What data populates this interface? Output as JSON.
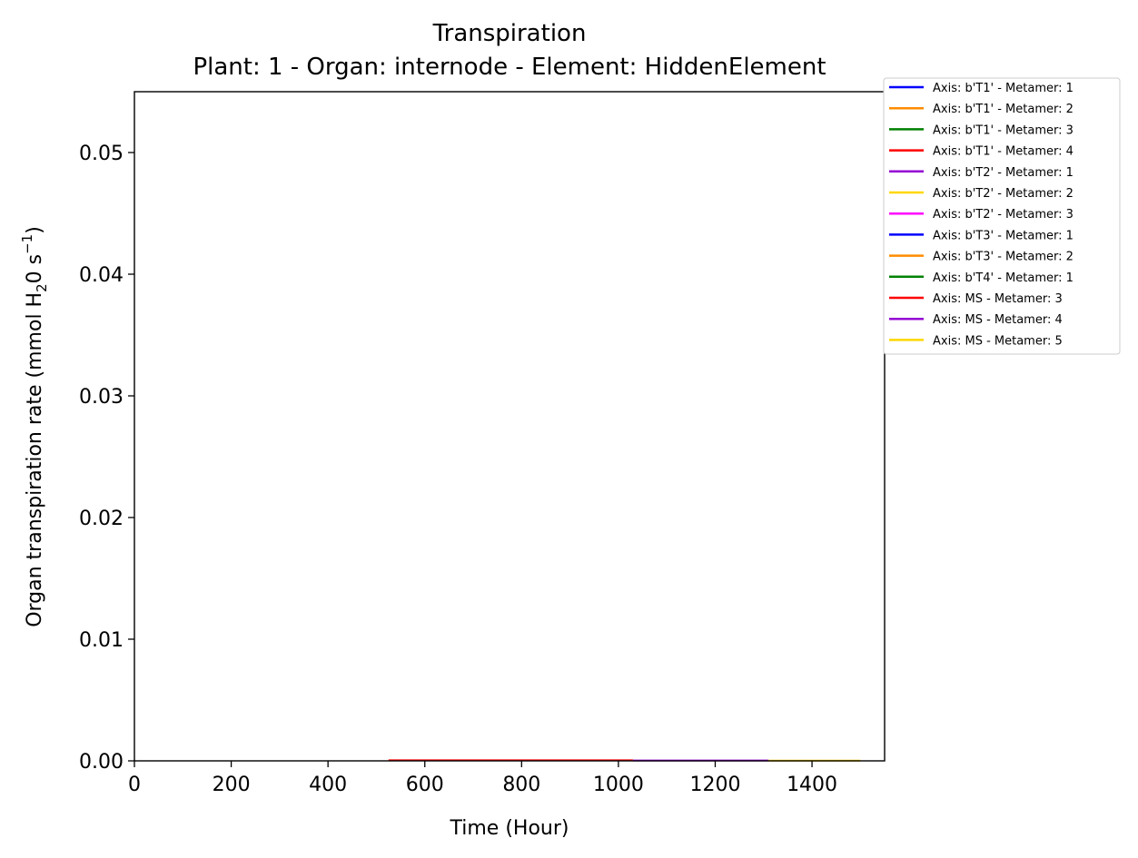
{
  "chart_data": {
    "type": "line",
    "title": "Transpiration",
    "subtitle": "Plant: 1 - Organ: internode - Element: HiddenElement",
    "xlabel": "Time (Hour)",
    "ylabel_parts": [
      "Organ transpiration rate (mmol H",
      "2",
      "0 s",
      "−1",
      ")"
    ],
    "xlim": [
      0,
      1550
    ],
    "ylim": [
      0,
      0.055
    ],
    "xticks": [
      0,
      200,
      400,
      600,
      800,
      1000,
      1200,
      1400
    ],
    "xtick_labels": [
      "0",
      "200",
      "400",
      "600",
      "800",
      "1000",
      "1200",
      "1400"
    ],
    "yticks": [
      0,
      0.01,
      0.02,
      0.03,
      0.04,
      0.05
    ],
    "ytick_labels": [
      "0.00",
      "0.01",
      "0.02",
      "0.03",
      "0.04",
      "0.05"
    ],
    "grid": false,
    "legend_position": "outside-top-right",
    "series": [
      {
        "name": "Axis: b'T1' - Metamer: 1",
        "color": "#0000ff",
        "x": [],
        "y": []
      },
      {
        "name": "Axis: b'T1' - Metamer: 2",
        "color": "#ff8c00",
        "x": [],
        "y": []
      },
      {
        "name": "Axis: b'T1' - Metamer: 3",
        "color": "#008000",
        "x": [],
        "y": []
      },
      {
        "name": "Axis: b'T1' - Metamer: 4",
        "color": "#ff0000",
        "x": [],
        "y": []
      },
      {
        "name": "Axis: b'T2' - Metamer: 1",
        "color": "#9400d3",
        "x": [],
        "y": []
      },
      {
        "name": "Axis: b'T2' - Metamer: 2",
        "color": "#ffd700",
        "x": [],
        "y": []
      },
      {
        "name": "Axis: b'T2' - Metamer: 3",
        "color": "#ff00ff",
        "x": [],
        "y": []
      },
      {
        "name": "Axis: b'T3' - Metamer: 1",
        "color": "#0000ff",
        "x": [],
        "y": []
      },
      {
        "name": "Axis: b'T3' - Metamer: 2",
        "color": "#ff8c00",
        "x": [],
        "y": []
      },
      {
        "name": "Axis: b'T4' - Metamer: 1",
        "color": "#008000",
        "x": [],
        "y": []
      },
      {
        "name": "Axis: MS - Metamer: 3",
        "color": "#ff0000",
        "x": [
          525,
          1030
        ],
        "y": [
          5e-05,
          5e-05
        ]
      },
      {
        "name": "Axis: MS - Metamer: 4",
        "color": "#9400d3",
        "x": [
          1030,
          1310
        ],
        "y": [
          3e-05,
          3e-05
        ]
      },
      {
        "name": "Axis: MS - Metamer: 5",
        "color": "#ffd700",
        "x": [
          1310,
          1500
        ],
        "y": [
          2e-05,
          2e-05
        ]
      }
    ]
  }
}
